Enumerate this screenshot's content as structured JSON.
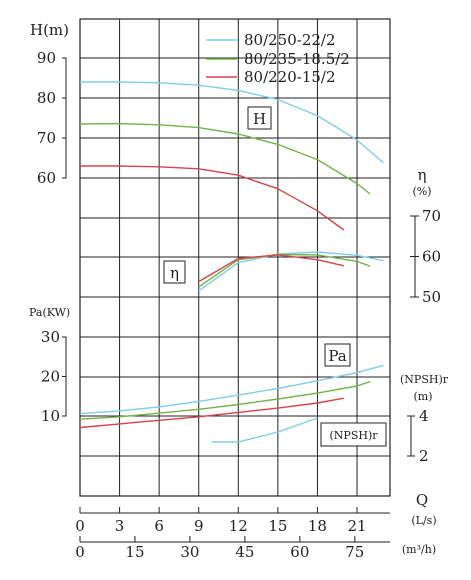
{
  "chart_data": {
    "type": "line",
    "legend": {
      "placement": "top-center",
      "entries": [
        {
          "name": "80/250-22/2",
          "color": "#7fcde6"
        },
        {
          "name": "80/235-18.5/2",
          "color": "#72b44a"
        },
        {
          "name": "80/220-15/2",
          "color": "#d9424a"
        }
      ]
    },
    "axes": {
      "H": {
        "label": "H(m)",
        "ticks": [
          "90",
          "80",
          "70",
          "60"
        ],
        "range": [
          60,
          90
        ]
      },
      "eta": {
        "label": "η",
        "unit": "(%)",
        "ticks": [
          "70",
          "60",
          "50"
        ],
        "range": [
          50,
          70
        ]
      },
      "Pa": {
        "label": "Pa(KW)",
        "ticks": [
          "30",
          "20",
          "10"
        ],
        "range": [
          10,
          30
        ]
      },
      "npsh": {
        "label": "(NPSH)r",
        "unit": "(m)",
        "ticks": [
          "4",
          "2"
        ],
        "range": [
          2,
          4
        ]
      },
      "Q_ls": {
        "label": "Q",
        "unit": "(L/s)",
        "ticks": [
          "0",
          "3",
          "6",
          "9",
          "12",
          "15",
          "18",
          "21"
        ],
        "range": [
          0,
          23.5
        ]
      },
      "Q_m3h": {
        "unit": "(m³/h)",
        "ticks": [
          "0",
          "15",
          "30",
          "45",
          "60",
          "75"
        ]
      }
    },
    "curve_labels": {
      "H": "H",
      "eta": "η",
      "Pa": "Pa",
      "npsh": "(NPSH)r"
    },
    "grid": true,
    "x_unit": "L/s",
    "series": [
      {
        "name": "80/250-22/2",
        "color": "#7fcde6",
        "H": {
          "x": [
            0,
            3,
            6,
            9,
            12,
            15,
            18,
            21,
            23
          ],
          "y": [
            84,
            84,
            83.8,
            83.2,
            81.9,
            79.6,
            75.6,
            69.5,
            63.8
          ]
        },
        "eta": {
          "x": [
            9,
            12,
            15,
            18,
            21,
            23
          ],
          "y": [
            51.5,
            58.5,
            60.6,
            61.1,
            60.3,
            59
          ]
        },
        "Pa": {
          "x": [
            0,
            3,
            6,
            9,
            12,
            15,
            18,
            21,
            23
          ],
          "y": [
            10.6,
            11.3,
            12.3,
            13.7,
            15.3,
            17,
            18.9,
            21,
            22.8
          ]
        },
        "npsh": {
          "x": [
            10,
            12,
            15,
            18
          ],
          "y": [
            2.7,
            2.7,
            3.2,
            3.9
          ]
        }
      },
      {
        "name": "80/235-18.5/2",
        "color": "#72b44a",
        "H": {
          "x": [
            0,
            3,
            6,
            9,
            12,
            15,
            18,
            21,
            22
          ],
          "y": [
            73.5,
            73.6,
            73.3,
            72.6,
            71,
            68.4,
            64.6,
            58.6,
            56
          ]
        },
        "eta": {
          "x": [
            9,
            12,
            15,
            18,
            21,
            22
          ],
          "y": [
            52.5,
            59.2,
            60.5,
            60.4,
            58.8,
            57.6
          ]
        },
        "Pa": {
          "x": [
            0,
            3,
            6,
            9,
            12,
            15,
            18,
            21,
            22
          ],
          "y": [
            9.2,
            9.8,
            10.7,
            11.7,
            12.9,
            14.3,
            15.8,
            17.6,
            18.7
          ]
        }
      },
      {
        "name": "80/220-15/2",
        "color": "#d9424a",
        "H": {
          "x": [
            0,
            3,
            6,
            9,
            12,
            15,
            18,
            20
          ],
          "y": [
            63,
            63,
            62.8,
            62.3,
            60.7,
            57.3,
            51.8,
            47
          ]
        },
        "eta": {
          "x": [
            9,
            12,
            15,
            18,
            20
          ],
          "y": [
            53.8,
            59.5,
            60.4,
            59.2,
            57.7
          ]
        },
        "Pa": {
          "x": [
            0,
            3,
            6,
            9,
            12,
            15,
            18,
            20
          ],
          "y": [
            7.1,
            8,
            8.9,
            9.8,
            10.9,
            12,
            13.3,
            14.5
          ]
        }
      }
    ]
  }
}
